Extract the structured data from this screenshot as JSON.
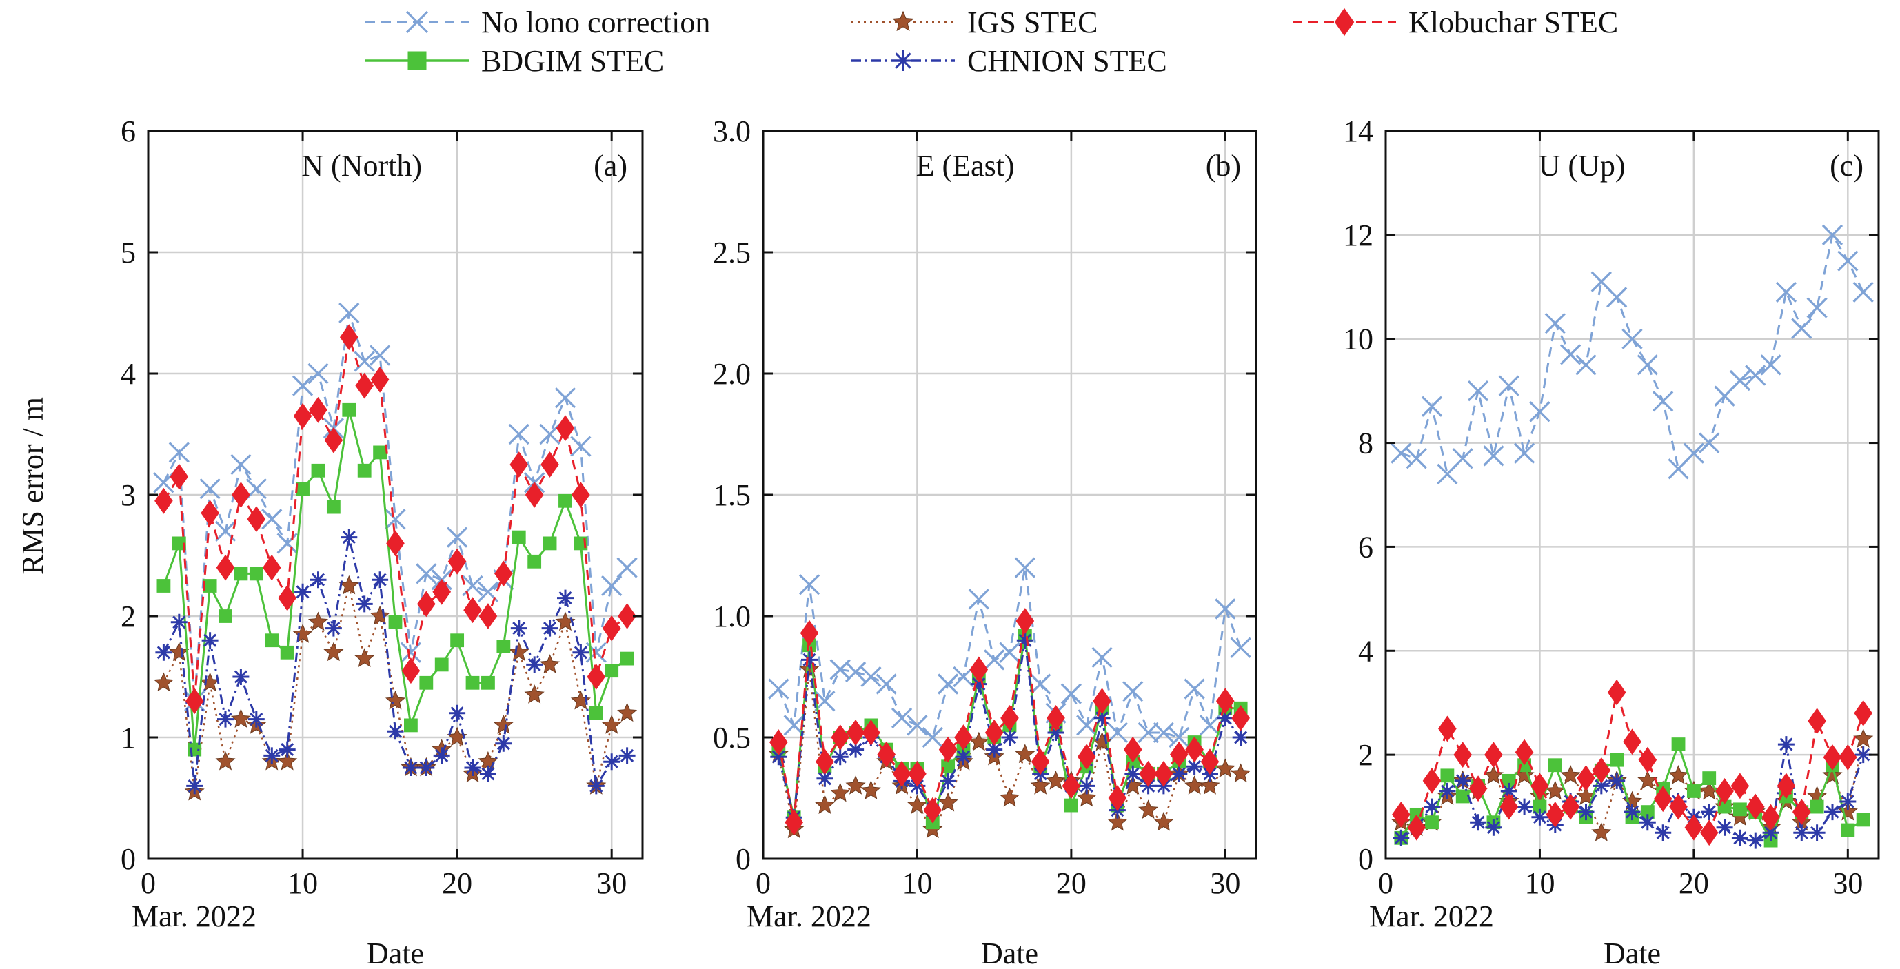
{
  "figure": {
    "ylabel": "RMS error / m",
    "date_note": "Mar. 2022",
    "xlabel": "Date"
  },
  "legend": [
    {
      "name": "No lono correction",
      "color": "#7fa3d6",
      "marker": "x",
      "dash": "dash"
    },
    {
      "name": "IGS STEC",
      "color": "#a0522d",
      "marker": "star",
      "dash": "dot"
    },
    {
      "name": "Klobuchar STEC",
      "color": "#e8202a",
      "marker": "diamond",
      "dash": "dash"
    },
    {
      "name": "BDGIM STEC",
      "color": "#4cc23a",
      "marker": "square",
      "dash": "solid"
    },
    {
      "name": "CHNION STEC",
      "color": "#2d3aa8",
      "marker": "asterisk",
      "dash": "dashdot"
    }
  ],
  "chart_data": [
    {
      "type": "line",
      "panel": "(a)",
      "title": "N (North)",
      "xlim": [
        0,
        32
      ],
      "ylim": [
        0,
        6
      ],
      "xticks": [
        0,
        10,
        20,
        30
      ],
      "yticks": [
        "0",
        "1",
        "2",
        "3",
        "4",
        "5",
        "6"
      ],
      "ytick_values": [
        0,
        1,
        2,
        3,
        4,
        5,
        6
      ],
      "grid": true,
      "x": [
        1,
        2,
        3,
        4,
        5,
        6,
        7,
        8,
        9,
        10,
        11,
        12,
        13,
        14,
        15,
        16,
        17,
        18,
        19,
        20,
        21,
        22,
        23,
        24,
        25,
        26,
        27,
        28,
        29,
        30,
        31
      ],
      "series": [
        {
          "name": "No lono correction",
          "values": [
            3.1,
            3.35,
            1.3,
            3.05,
            2.7,
            3.25,
            3.05,
            2.8,
            2.6,
            3.9,
            4.0,
            3.55,
            4.5,
            4.1,
            4.15,
            2.8,
            1.7,
            2.35,
            2.3,
            2.65,
            2.25,
            2.2,
            2.3,
            3.5,
            3.1,
            3.5,
            3.8,
            3.4,
            1.7,
            2.25,
            2.4
          ]
        },
        {
          "name": "IGS STEC",
          "values": [
            1.45,
            1.7,
            0.55,
            1.45,
            0.8,
            1.15,
            1.1,
            0.8,
            0.8,
            1.85,
            1.95,
            1.7,
            2.25,
            1.65,
            2.0,
            1.3,
            0.75,
            0.75,
            0.9,
            1.0,
            0.7,
            0.8,
            1.1,
            1.7,
            1.35,
            1.6,
            1.95,
            1.3,
            0.6,
            1.1,
            1.2
          ]
        },
        {
          "name": "Klobuchar STEC",
          "values": [
            2.95,
            3.15,
            1.3,
            2.85,
            2.4,
            3.0,
            2.8,
            2.4,
            2.15,
            3.65,
            3.7,
            3.45,
            4.3,
            3.9,
            3.95,
            2.6,
            1.55,
            2.1,
            2.2,
            2.45,
            2.05,
            2.0,
            2.35,
            3.25,
            3.0,
            3.25,
            3.55,
            3.0,
            1.5,
            1.9,
            2.0
          ]
        },
        {
          "name": "BDGIM STEC",
          "values": [
            2.25,
            2.6,
            0.9,
            2.25,
            2.0,
            2.35,
            2.35,
            1.8,
            1.7,
            3.05,
            3.2,
            2.9,
            3.7,
            3.2,
            3.35,
            1.95,
            1.1,
            1.45,
            1.6,
            1.8,
            1.45,
            1.45,
            1.75,
            2.65,
            2.45,
            2.6,
            2.95,
            2.6,
            1.2,
            1.55,
            1.65
          ]
        },
        {
          "name": "CHNION STEC",
          "values": [
            1.7,
            1.95,
            0.6,
            1.8,
            1.15,
            1.5,
            1.15,
            0.85,
            0.9,
            2.2,
            2.3,
            1.9,
            2.65,
            2.1,
            2.3,
            1.05,
            0.75,
            0.75,
            0.85,
            1.2,
            0.75,
            0.7,
            0.95,
            1.9,
            1.6,
            1.9,
            2.15,
            1.7,
            0.6,
            0.8,
            0.85
          ]
        }
      ]
    },
    {
      "type": "line",
      "panel": "(b)",
      "title": "E (East)",
      "xlim": [
        0,
        32
      ],
      "ylim": [
        0,
        3
      ],
      "xticks": [
        0,
        10,
        20,
        30
      ],
      "yticks": [
        "0",
        "0.5",
        "1.0",
        "1.5",
        "2.0",
        "2.5",
        "3.0"
      ],
      "ytick_values": [
        0,
        0.5,
        1.0,
        1.5,
        2.0,
        2.5,
        3.0
      ],
      "grid": true,
      "x": [
        1,
        2,
        3,
        4,
        5,
        6,
        7,
        8,
        9,
        10,
        11,
        12,
        13,
        14,
        15,
        16,
        17,
        18,
        19,
        20,
        21,
        22,
        23,
        24,
        25,
        26,
        27,
        28,
        29,
        30,
        31
      ],
      "series": [
        {
          "name": "No lono correction",
          "values": [
            0.7,
            0.55,
            1.13,
            0.65,
            0.78,
            0.77,
            0.75,
            0.72,
            0.58,
            0.55,
            0.5,
            0.72,
            0.75,
            1.07,
            0.82,
            0.85,
            1.2,
            0.72,
            0.6,
            0.68,
            0.55,
            0.83,
            0.52,
            0.69,
            0.52,
            0.52,
            0.5,
            0.7,
            0.55,
            1.03,
            0.87
          ]
        },
        {
          "name": "IGS STEC",
          "values": [
            0.43,
            0.12,
            0.78,
            0.22,
            0.27,
            0.3,
            0.28,
            0.4,
            0.3,
            0.22,
            0.12,
            0.23,
            0.4,
            0.48,
            0.42,
            0.25,
            0.43,
            0.3,
            0.32,
            0.32,
            0.25,
            0.48,
            0.15,
            0.3,
            0.2,
            0.15,
            0.35,
            0.3,
            0.3,
            0.37,
            0.35
          ]
        },
        {
          "name": "Klobuchar STEC",
          "values": [
            0.48,
            0.15,
            0.93,
            0.4,
            0.5,
            0.52,
            0.52,
            0.43,
            0.35,
            0.35,
            0.2,
            0.45,
            0.5,
            0.78,
            0.52,
            0.58,
            0.98,
            0.4,
            0.58,
            0.3,
            0.42,
            0.65,
            0.25,
            0.45,
            0.35,
            0.35,
            0.43,
            0.45,
            0.4,
            0.65,
            0.58
          ]
        },
        {
          "name": "BDGIM STEC",
          "values": [
            0.45,
            0.17,
            0.88,
            0.38,
            0.5,
            0.52,
            0.55,
            0.45,
            0.37,
            0.37,
            0.15,
            0.38,
            0.45,
            0.75,
            0.5,
            0.55,
            0.92,
            0.38,
            0.55,
            0.22,
            0.38,
            0.62,
            0.22,
            0.4,
            0.35,
            0.35,
            0.4,
            0.48,
            0.4,
            0.62,
            0.62
          ]
        },
        {
          "name": "CHNION STEC",
          "values": [
            0.42,
            0.17,
            0.82,
            0.33,
            0.42,
            0.45,
            0.5,
            0.42,
            0.32,
            0.3,
            0.2,
            0.32,
            0.42,
            0.72,
            0.45,
            0.5,
            0.9,
            0.35,
            0.52,
            0.3,
            0.3,
            0.58,
            0.2,
            0.35,
            0.3,
            0.3,
            0.35,
            0.38,
            0.35,
            0.58,
            0.5
          ]
        }
      ]
    },
    {
      "type": "line",
      "panel": "(c)",
      "title": "U (Up)",
      "xlim": [
        0,
        32
      ],
      "ylim": [
        0,
        14
      ],
      "xticks": [
        0,
        10,
        20,
        30
      ],
      "yticks": [
        "0",
        "2",
        "4",
        "6",
        "8",
        "10",
        "12",
        "14"
      ],
      "ytick_values": [
        0,
        2,
        4,
        6,
        8,
        10,
        12,
        14
      ],
      "grid": true,
      "x": [
        1,
        2,
        3,
        4,
        5,
        6,
        7,
        8,
        9,
        10,
        11,
        12,
        13,
        14,
        15,
        16,
        17,
        18,
        19,
        20,
        21,
        22,
        23,
        24,
        25,
        26,
        27,
        28,
        29,
        30,
        31
      ],
      "series": [
        {
          "name": "No lono correction",
          "values": [
            7.8,
            7.7,
            8.7,
            7.4,
            7.7,
            9.0,
            7.75,
            9.1,
            7.8,
            8.6,
            10.3,
            9.7,
            9.5,
            11.1,
            10.8,
            10.0,
            9.5,
            8.8,
            7.5,
            7.8,
            8.0,
            8.9,
            9.2,
            9.3,
            9.5,
            10.9,
            10.2,
            10.6,
            12.0,
            11.5,
            10.9
          ]
        },
        {
          "name": "IGS STEC",
          "values": [
            0.7,
            0.6,
            0.7,
            1.2,
            1.5,
            1.3,
            1.6,
            1.1,
            1.6,
            1.2,
            1.3,
            1.6,
            1.2,
            0.5,
            1.5,
            1.1,
            1.5,
            1.3,
            1.6,
            1.3,
            1.3,
            1.0,
            0.8,
            0.9,
            0.6,
            1.1,
            0.7,
            1.2,
            1.6,
            0.9,
            2.3
          ]
        },
        {
          "name": "Klobuchar STEC",
          "values": [
            0.85,
            0.6,
            1.5,
            2.5,
            2.0,
            1.35,
            2.0,
            1.0,
            2.05,
            1.4,
            0.85,
            1.0,
            1.55,
            1.7,
            3.2,
            2.25,
            1.9,
            1.15,
            1.0,
            0.6,
            0.5,
            1.3,
            1.4,
            1.0,
            0.8,
            1.4,
            0.9,
            2.65,
            1.95,
            1.95,
            2.8
          ]
        },
        {
          "name": "BDGIM STEC",
          "values": [
            0.4,
            0.85,
            0.7,
            1.6,
            1.2,
            1.4,
            0.7,
            1.5,
            1.8,
            1.0,
            1.8,
            1.0,
            0.8,
            1.7,
            1.9,
            0.8,
            0.9,
            1.35,
            2.2,
            1.3,
            1.55,
            1.0,
            0.95,
            0.9,
            0.35,
            1.2,
            0.9,
            1.0,
            1.8,
            0.55,
            0.75
          ]
        },
        {
          "name": "CHNION STEC",
          "values": [
            0.4,
            0.6,
            1.0,
            1.3,
            1.5,
            0.7,
            0.6,
            1.3,
            1.0,
            0.8,
            0.65,
            1.1,
            0.9,
            1.4,
            1.5,
            0.9,
            0.7,
            0.5,
            1.1,
            0.8,
            0.9,
            0.6,
            0.4,
            0.35,
            0.5,
            2.2,
            0.5,
            0.5,
            0.9,
            1.1,
            2.0
          ]
        }
      ]
    }
  ]
}
